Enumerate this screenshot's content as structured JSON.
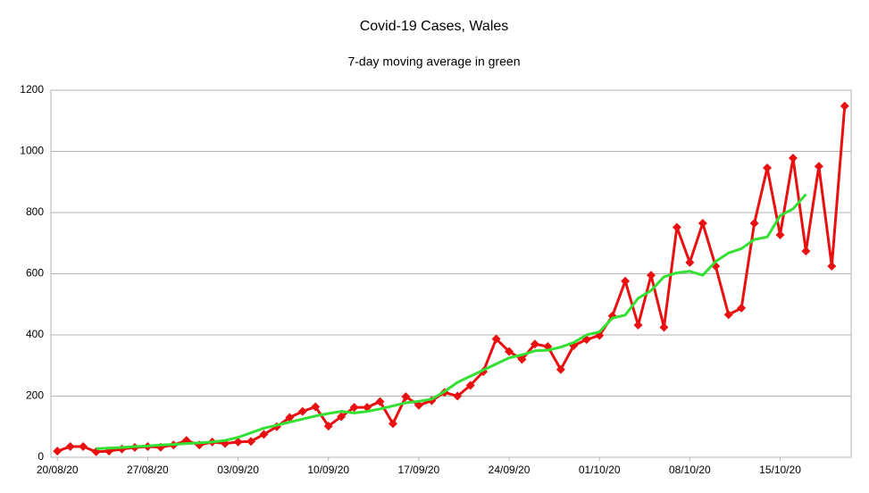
{
  "chart_data": {
    "type": "line",
    "title": "Covid-19 Cases, Wales",
    "subtitle": "7-day moving average in green",
    "categories": [
      "20/08/20",
      null,
      null,
      null,
      null,
      null,
      null,
      "27/08/20",
      null,
      null,
      null,
      null,
      null,
      null,
      "03/09/20",
      null,
      null,
      null,
      null,
      null,
      null,
      "10/09/20",
      null,
      null,
      null,
      null,
      null,
      null,
      "17/09/20",
      null,
      null,
      null,
      null,
      null,
      null,
      "24/09/20",
      null,
      null,
      null,
      null,
      null,
      null,
      "01/10/20",
      null,
      null,
      null,
      null,
      null,
      null,
      "08/10/20",
      null,
      null,
      null,
      null,
      null,
      null,
      "15/10/20",
      null,
      null,
      null,
      null,
      null
    ],
    "series": [
      {
        "color": "#e81010",
        "marker": "diamond",
        "values": [
          20,
          35,
          35,
          18,
          20,
          27,
          32,
          35,
          33,
          40,
          55,
          40,
          50,
          45,
          50,
          52,
          75,
          100,
          130,
          150,
          165,
          102,
          133,
          163,
          163,
          182,
          110,
          198,
          170,
          185,
          212,
          200,
          235,
          280,
          387,
          346,
          320,
          370,
          362,
          287,
          365,
          385,
          398,
          462,
          576,
          432,
          595,
          425,
          752,
          637,
          765,
          625,
          466,
          488,
          765,
          946,
          727,
          978,
          674,
          951,
          625,
          1148
        ]
      },
      {
        "color": "#33e033",
        "values": [
          null,
          null,
          null,
          28,
          30,
          32,
          35,
          37,
          40,
          42,
          45,
          47,
          50,
          55,
          65,
          80,
          95,
          105,
          115,
          125,
          135,
          143,
          150,
          145,
          150,
          158,
          168,
          178,
          183,
          190,
          215,
          245,
          265,
          285,
          305,
          325,
          335,
          348,
          350,
          360,
          375,
          400,
          410,
          455,
          465,
          520,
          545,
          590,
          603,
          608,
          595,
          640,
          668,
          682,
          712,
          720,
          790,
          812,
          860,
          null,
          null,
          null
        ]
      }
    ],
    "ylim": [
      0,
      1200
    ],
    "yticks": [
      0,
      200,
      400,
      600,
      800,
      1000,
      1200
    ],
    "grid": true
  }
}
